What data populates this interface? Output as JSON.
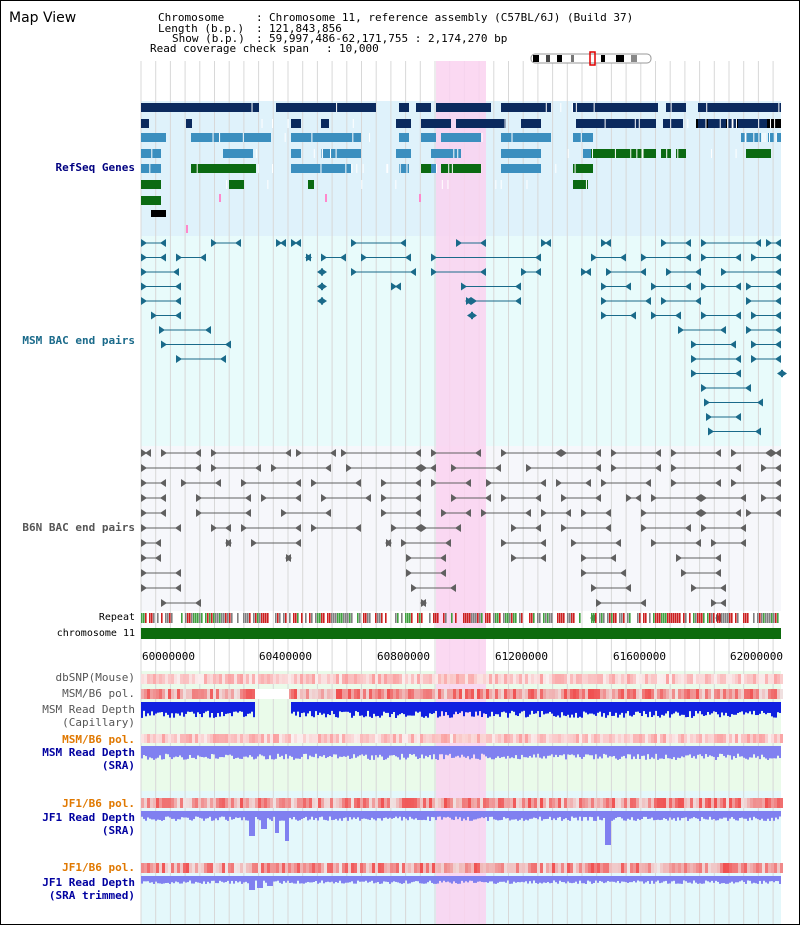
{
  "page": {
    "title": "Map View"
  },
  "header": {
    "chromosome_label": "Chromosome",
    "chromosome_value": "Chromosome 11, reference assembly (C57BL/6J) (Build 37)",
    "length_label": "Length (b.p.)",
    "length_value": "121,843,856",
    "show_label": "Show (b.p.)",
    "show_value": "59,997,486-62,171,755 : 2,174,270 bp",
    "coverage_label": "Read coverage check span",
    "coverage_value": "10,000"
  },
  "tracks": {
    "refseq_genes": "RefSeq Genes",
    "msm_bac": "MSM BAC end pairs",
    "b6n_bac": "B6N BAC end pairs",
    "repeat": "Repeat",
    "chromosome": "chromosome 11",
    "dbsnp": "dbSNP(Mouse)",
    "msm_b6_pol_1": "MSM/B6 pol.",
    "msm_depth_cap_1": "MSM Read Depth",
    "msm_depth_cap_2": "(Capillary)",
    "msm_b6_pol_2": "MSM/B6 pol.",
    "msm_depth_sra_1": "MSM Read Depth",
    "msm_depth_sra_2": "(SRA)",
    "jf1_b6_pol_1": "JF1/B6 pol.",
    "jf1_depth_sra_1": "JF1 Read Depth",
    "jf1_depth_sra_2": "(SRA)",
    "jf1_b6_pol_2": "JF1/B6 pol.",
    "jf1_depth_trim_1": "JF1 Read Depth",
    "jf1_depth_trim_2": "(SRA trimmed)"
  },
  "axis": {
    "ticks": [
      "60000000",
      "60400000",
      "60800000",
      "61200000",
      "61600000",
      "62000000"
    ]
  },
  "colors": {
    "refseq_bg": "#dff2fb",
    "msm_bac_bg": "#e8fbfb",
    "b6n_bac_bg": "#f6f7fb",
    "highlight": "#fad2f0",
    "refseq_dark": "#0b2a5e",
    "refseq_mid": "#3b8fbf",
    "refseq_green": "#0b6a12",
    "msm_line": "#1a6a8a",
    "b6n_line": "#606060",
    "chromosome": "#0d6b0d",
    "refseq_label": "#000080",
    "msm_label": "#1a6a8a",
    "b6n_label": "#555555",
    "pol_label": "#e07800",
    "depth_label": "#0000a0",
    "depth_capillary": "#1020e0",
    "depth_sra": "#8080f0",
    "depth_bg": "#eafbea",
    "jf1_bg": "#e4f8fb"
  }
}
